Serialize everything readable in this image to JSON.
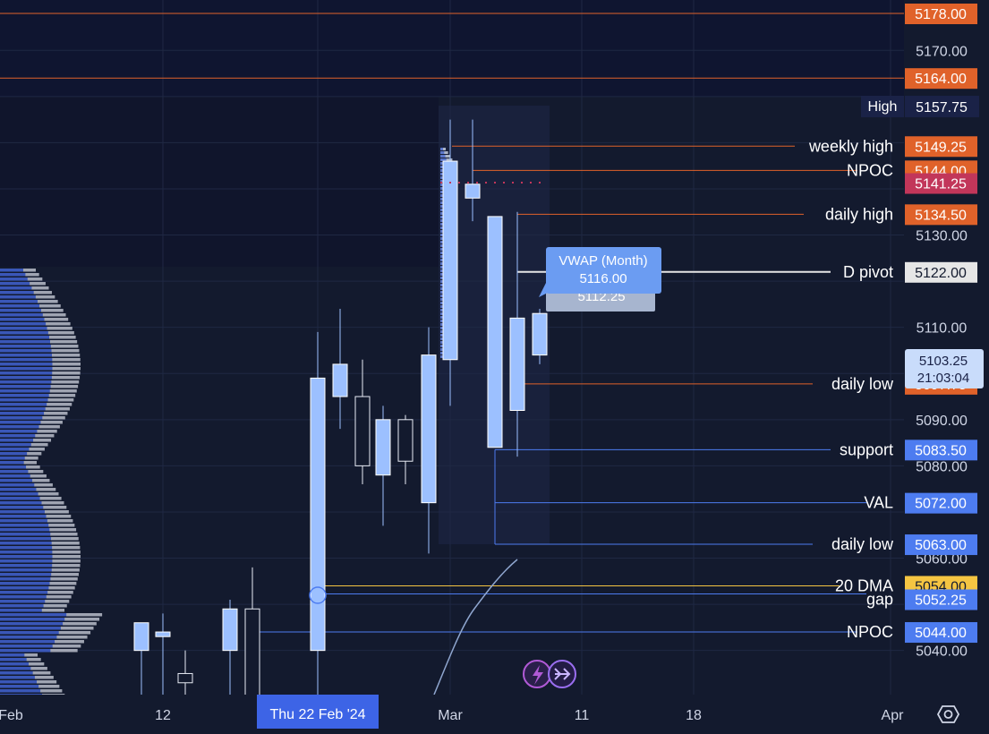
{
  "chart_data": {
    "type": "candlestick",
    "price_axis": {
      "ticks": [
        "5170.00",
        "5130.00",
        "5110.00",
        "5090.00",
        "5080.00",
        "5060.00",
        "5040.00"
      ],
      "range": [
        5030,
        5180
      ]
    },
    "time_axis": {
      "ticks": [
        "Feb",
        "12",
        "Mar",
        "11",
        "18",
        "Apr"
      ],
      "crosshair_label": "Thu 22 Feb '24"
    },
    "candles": [
      {
        "o": 5040,
        "h": 5046,
        "l": 5030,
        "c": 5046
      },
      {
        "o": 5043,
        "h": 5048,
        "l": 5030,
        "c": 5044
      },
      {
        "o": 5035,
        "h": 5040,
        "l": 5030,
        "c": 5033
      },
      {
        "o": 5040,
        "h": 5051,
        "l": 5030,
        "c": 5049
      },
      {
        "o": 5049,
        "h": 5058,
        "l": 5030,
        "c": 5030
      },
      {
        "o": 5040,
        "h": 5109,
        "l": 5030,
        "c": 5099
      },
      {
        "o": 5095,
        "h": 5114,
        "l": 5088,
        "c": 5102
      },
      {
        "o": 5095,
        "h": 5103,
        "l": 5076,
        "c": 5080
      },
      {
        "o": 5078,
        "h": 5093,
        "l": 5067,
        "c": 5090
      },
      {
        "o": 5090,
        "h": 5091,
        "l": 5076,
        "c": 5081
      },
      {
        "o": 5072,
        "h": 5110,
        "l": 5061,
        "c": 5104
      },
      {
        "o": 5103,
        "h": 5155,
        "l": 5093,
        "c": 5146
      },
      {
        "o": 5138,
        "h": 5155,
        "l": 5133,
        "c": 5141
      },
      {
        "o": 5084,
        "h": 5134,
        "l": 5084,
        "c": 5134
      },
      {
        "o": 5092,
        "h": 5135,
        "l": 5082,
        "c": 5112
      },
      {
        "o": 5104,
        "h": 5114,
        "l": 5102,
        "c": 5113
      }
    ],
    "levels": [
      {
        "label": "",
        "price_label": "5178.00",
        "price": 5178.0,
        "color": "#e0622a"
      },
      {
        "label": "",
        "price_label": "5164.00",
        "price": 5164.0,
        "color": "#e0622a"
      },
      {
        "label": "weekly high",
        "price_label": "5149.25",
        "price": 5149.25,
        "color": "#e0622a"
      },
      {
        "label": "NPOC",
        "price_label": "5144.00",
        "price": 5144.0,
        "color": "#e0622a"
      },
      {
        "label": "",
        "price_label": "5141.25",
        "price": 5141.25,
        "color": "#c2365a"
      },
      {
        "label": "daily high",
        "price_label": "5134.50",
        "price": 5134.5,
        "color": "#e0622a"
      },
      {
        "label": "D pivot",
        "price_label": "5122.00",
        "price": 5122.0,
        "color": "#e6e6e6"
      },
      {
        "label": "daily low",
        "price_label": "5097.75",
        "price": 5097.75,
        "color": "#e0622a"
      },
      {
        "label": "support",
        "price_label": "5083.50",
        "price": 5083.5,
        "color": "#4d7cf0"
      },
      {
        "label": "VAL",
        "price_label": "5072.00",
        "price": 5072.0,
        "color": "#4d7cf0"
      },
      {
        "label": "daily low",
        "price_label": "5063.00",
        "price": 5063.0,
        "color": "#4d7cf0"
      },
      {
        "label": "20 DMA",
        "price_label": "5054.00",
        "price": 5054.0,
        "color": "#f5c542"
      },
      {
        "label": "gap",
        "price_label": "5052.25",
        "price": 5052.25,
        "color": "#4d7cf0"
      },
      {
        "label": "NPOC",
        "price_label": "5044.00",
        "price": 5044.0,
        "color": "#4d7cf0"
      }
    ],
    "high_badge": {
      "label": "High",
      "value": "5157.75"
    },
    "current_price": {
      "value": "5103.25",
      "countdown": "21:03:04"
    },
    "vwap": {
      "title": "VWAP (Month)",
      "value": "5116.00",
      "value2": "5112.25"
    }
  },
  "colors": {
    "background": "#131a2e",
    "candle_up": "#9cc0ff",
    "candle_down": "#ffffff",
    "orange": "#e0622a",
    "blue": "#4d7cf0",
    "yellow": "#f5c542"
  },
  "icons": {
    "replay": "replay-icon",
    "settings": "hexagon-settings-icon"
  }
}
